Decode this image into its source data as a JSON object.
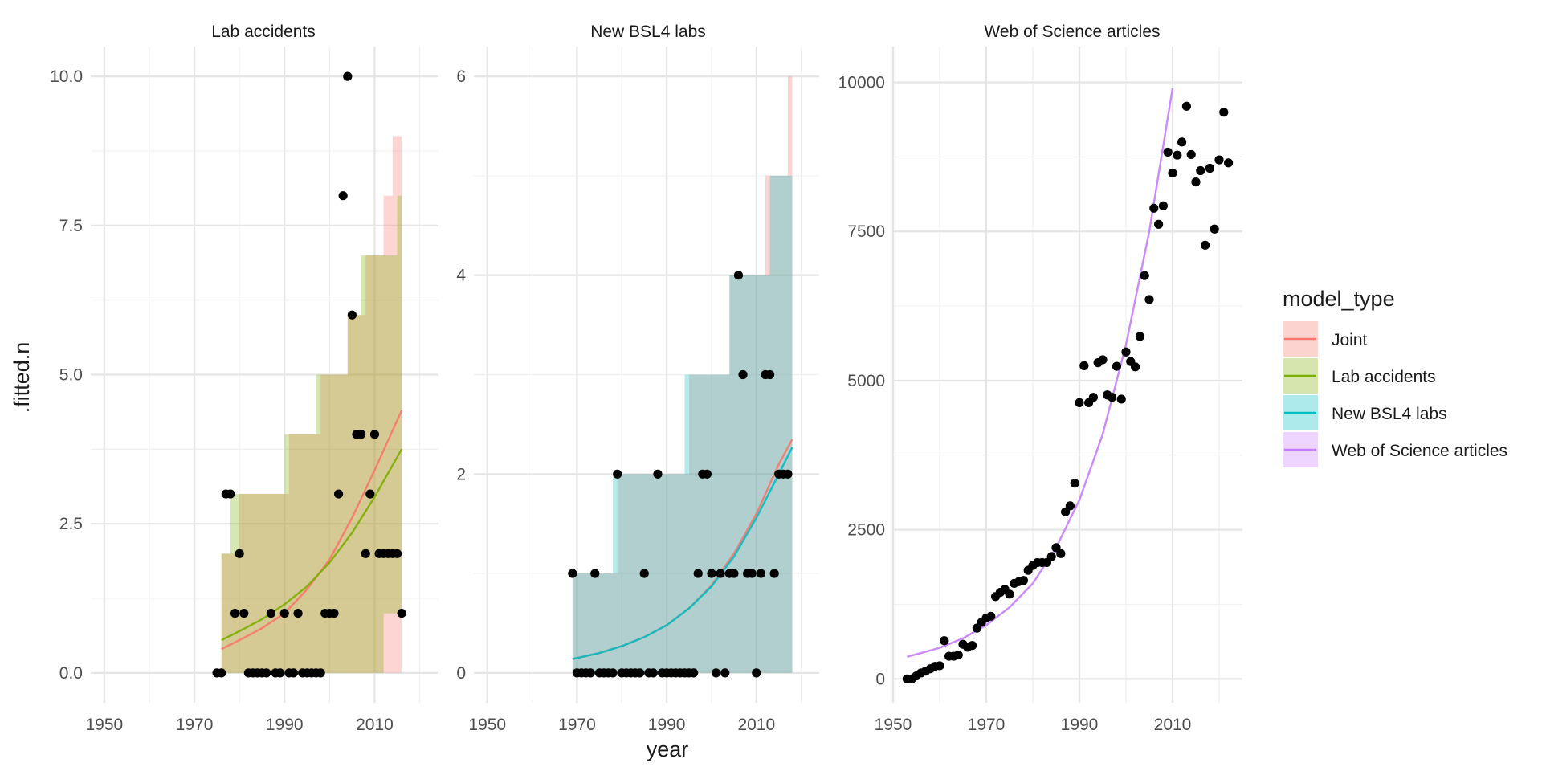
{
  "chart_data": {
    "type": "scatter",
    "xlabel": "year",
    "ylabel": ".fitted.n",
    "legend": {
      "title": "model_type",
      "position": "right",
      "entries": [
        {
          "name": "Joint",
          "color": "#F8766D"
        },
        {
          "name": "Lab accidents",
          "color": "#7CAE00"
        },
        {
          "name": "New BSL4 labs",
          "color": "#00BFC4"
        },
        {
          "name": "Web of Science articles",
          "color": "#C77CFF"
        }
      ]
    },
    "panels": [
      {
        "title": "Lab accidents",
        "xlim": [
          1947,
          2024
        ],
        "ylim": [
          -0.5,
          10.5
        ],
        "x_ticks": [
          1950,
          1970,
          1990,
          2010
        ],
        "y_ticks": [
          0,
          2.5,
          5,
          7.5,
          10
        ],
        "y_tick_labels": [
          "0.0",
          "2.5",
          "5.0",
          "7.5",
          "10.0"
        ],
        "points": [
          [
            1975,
            0
          ],
          [
            1976,
            0
          ],
          [
            1977,
            3
          ],
          [
            1978,
            3
          ],
          [
            1979,
            1
          ],
          [
            1980,
            2
          ],
          [
            1981,
            1
          ],
          [
            1982,
            0
          ],
          [
            1983,
            0
          ],
          [
            1984,
            0
          ],
          [
            1985,
            0
          ],
          [
            1986,
            0
          ],
          [
            1987,
            1
          ],
          [
            1988,
            0
          ],
          [
            1989,
            0
          ],
          [
            1990,
            1
          ],
          [
            1991,
            0
          ],
          [
            1992,
            0
          ],
          [
            1993,
            1
          ],
          [
            1994,
            0
          ],
          [
            1995,
            0
          ],
          [
            1996,
            0
          ],
          [
            1997,
            0
          ],
          [
            1998,
            0
          ],
          [
            1999,
            1
          ],
          [
            2000,
            1
          ],
          [
            2001,
            1
          ],
          [
            2002,
            3
          ],
          [
            2003,
            8
          ],
          [
            2004,
            10
          ],
          [
            2005,
            6
          ],
          [
            2006,
            4
          ],
          [
            2007,
            4
          ],
          [
            2008,
            2
          ],
          [
            2009,
            3
          ],
          [
            2010,
            4
          ],
          [
            2011,
            2
          ],
          [
            2012,
            2
          ],
          [
            2013,
            2
          ],
          [
            2014,
            2
          ],
          [
            2015,
            2
          ],
          [
            2016,
            1
          ]
        ],
        "series": [
          {
            "name": "Joint",
            "fit": {
              "x": [
                1976,
                1980,
                1985,
                1990,
                1995,
                2000,
                2005,
                2010,
                2016
              ],
              "y": [
                0.4,
                0.55,
                0.75,
                1.0,
                1.4,
                1.9,
                2.6,
                3.4,
                4.4
              ]
            },
            "band_x": [
              1976,
              1980,
              1989,
              1991,
              1998,
              2004,
              2008,
              2012,
              2014,
              2016
            ],
            "band_upper": [
              2,
              3,
              3,
              4,
              5,
              6,
              7,
              8,
              9,
              9
            ],
            "band_lower": [
              0,
              0,
              0,
              0,
              0,
              0,
              0,
              0,
              0,
              0
            ]
          },
          {
            "name": "Lab accidents",
            "fit": {
              "x": [
                1976,
                1980,
                1985,
                1990,
                1995,
                2000,
                2005,
                2010,
                2016
              ],
              "y": [
                0.55,
                0.7,
                0.9,
                1.15,
                1.45,
                1.85,
                2.35,
                2.95,
                3.75
              ]
            },
            "band_x": [
              1976,
              1978,
              1989,
              1990,
              1997,
              2004,
              2007,
              2012,
              2015,
              2016
            ],
            "band_upper": [
              2,
              3,
              3,
              4,
              5,
              6,
              7,
              7,
              8,
              8
            ],
            "band_lower": [
              0,
              0,
              0,
              0,
              0,
              0,
              0,
              0,
              1,
              1
            ]
          }
        ]
      },
      {
        "title": "New BSL4 labs",
        "xlim": [
          1947,
          2024
        ],
        "ylim": [
          -0.3,
          6.3
        ],
        "x_ticks": [
          1950,
          1970,
          1990,
          2010
        ],
        "y_ticks": [
          0,
          2,
          4,
          6
        ],
        "y_tick_labels": [
          "0",
          "2",
          "4",
          "6"
        ],
        "points": [
          [
            1969,
            1
          ],
          [
            1970,
            0
          ],
          [
            1971,
            0
          ],
          [
            1972,
            0
          ],
          [
            1973,
            0
          ],
          [
            1974,
            1
          ],
          [
            1975,
            0
          ],
          [
            1976,
            0
          ],
          [
            1977,
            0
          ],
          [
            1978,
            0
          ],
          [
            1979,
            2
          ],
          [
            1980,
            0
          ],
          [
            1981,
            0
          ],
          [
            1982,
            0
          ],
          [
            1983,
            0
          ],
          [
            1984,
            0
          ],
          [
            1985,
            1
          ],
          [
            1986,
            0
          ],
          [
            1987,
            0
          ],
          [
            1988,
            2
          ],
          [
            1989,
            0
          ],
          [
            1990,
            0
          ],
          [
            1991,
            0
          ],
          [
            1992,
            0
          ],
          [
            1993,
            0
          ],
          [
            1994,
            0
          ],
          [
            1995,
            0
          ],
          [
            1996,
            0
          ],
          [
            1997,
            1
          ],
          [
            1998,
            2
          ],
          [
            1999,
            2
          ],
          [
            2000,
            1
          ],
          [
            2001,
            0
          ],
          [
            2002,
            1
          ],
          [
            2003,
            0
          ],
          [
            2004,
            1
          ],
          [
            2005,
            1
          ],
          [
            2006,
            4
          ],
          [
            2007,
            3
          ],
          [
            2008,
            1
          ],
          [
            2009,
            1
          ],
          [
            2010,
            0
          ],
          [
            2011,
            1
          ],
          [
            2012,
            3
          ],
          [
            2013,
            3
          ],
          [
            2014,
            1
          ],
          [
            2015,
            2
          ],
          [
            2016,
            2
          ],
          [
            2017,
            2
          ]
        ],
        "series": [
          {
            "name": "Joint",
            "fit": {
              "x": [
                1969,
                1975,
                1980,
                1985,
                1990,
                1995,
                2000,
                2005,
                2010,
                2015,
                2018
              ],
              "y": [
                0.14,
                0.2,
                0.27,
                0.36,
                0.48,
                0.65,
                0.88,
                1.2,
                1.6,
                2.1,
                2.35
              ]
            },
            "band_x": [
              1969,
              1979,
              1995,
              2004,
              2012,
              2017,
              2018
            ],
            "band_upper": [
              1,
              2,
              3,
              4,
              5,
              6,
              6
            ],
            "band_lower": [
              0,
              0,
              0,
              0,
              0,
              0,
              0
            ]
          },
          {
            "name": "New BSL4 labs",
            "fit": {
              "x": [
                1969,
                1975,
                1980,
                1985,
                1990,
                1995,
                2000,
                2005,
                2010,
                2015,
                2018
              ],
              "y": [
                0.14,
                0.2,
                0.27,
                0.36,
                0.48,
                0.65,
                0.87,
                1.17,
                1.56,
                2.0,
                2.27
              ]
            },
            "band_x": [
              1969,
              1978,
              1994,
              2004,
              2013,
              2018
            ],
            "band_upper": [
              1,
              2,
              3,
              4,
              5,
              5
            ],
            "band_lower": [
              0,
              0,
              0,
              0,
              0,
              0
            ]
          }
        ]
      },
      {
        "title": "Web of Science articles",
        "xlim": [
          1950,
          2025
        ],
        "ylim": [
          -400,
          10600
        ],
        "x_ticks": [
          1950,
          1970,
          1990,
          2010
        ],
        "y_ticks": [
          0,
          2500,
          5000,
          7500,
          10000
        ],
        "y_tick_labels": [
          "0",
          "2500",
          "5000",
          "7500",
          "10000"
        ],
        "points": [
          [
            1953,
            0
          ],
          [
            1954,
            0
          ],
          [
            1955,
            50
          ],
          [
            1956,
            100
          ],
          [
            1957,
            130
          ],
          [
            1958,
            170
          ],
          [
            1959,
            210
          ],
          [
            1960,
            220
          ],
          [
            1961,
            640
          ],
          [
            1962,
            380
          ],
          [
            1963,
            380
          ],
          [
            1964,
            400
          ],
          [
            1965,
            580
          ],
          [
            1966,
            530
          ],
          [
            1967,
            560
          ],
          [
            1968,
            850
          ],
          [
            1969,
            950
          ],
          [
            1970,
            1020
          ],
          [
            1971,
            1050
          ],
          [
            1972,
            1380
          ],
          [
            1973,
            1450
          ],
          [
            1974,
            1500
          ],
          [
            1975,
            1420
          ],
          [
            1976,
            1600
          ],
          [
            1977,
            1630
          ],
          [
            1978,
            1650
          ],
          [
            1979,
            1820
          ],
          [
            1980,
            1900
          ],
          [
            1981,
            1950
          ],
          [
            1982,
            1950
          ],
          [
            1983,
            1950
          ],
          [
            1984,
            2050
          ],
          [
            1985,
            2200
          ],
          [
            1986,
            2100
          ],
          [
            1987,
            2800
          ],
          [
            1988,
            2900
          ],
          [
            1989,
            3280
          ],
          [
            1990,
            4630
          ],
          [
            1991,
            5250
          ],
          [
            1992,
            4630
          ],
          [
            1993,
            4720
          ],
          [
            1994,
            5300
          ],
          [
            1995,
            5350
          ],
          [
            1996,
            4760
          ],
          [
            1997,
            4720
          ],
          [
            1998,
            5240
          ],
          [
            1999,
            4690
          ],
          [
            2000,
            5480
          ],
          [
            2001,
            5320
          ],
          [
            2002,
            5230
          ],
          [
            2003,
            5740
          ],
          [
            2004,
            6760
          ],
          [
            2005,
            6360
          ],
          [
            2006,
            7890
          ],
          [
            2007,
            7620
          ],
          [
            2008,
            7930
          ],
          [
            2009,
            8830
          ],
          [
            2010,
            8480
          ],
          [
            2011,
            8780
          ],
          [
            2012,
            9000
          ],
          [
            2013,
            9600
          ],
          [
            2014,
            8790
          ],
          [
            2015,
            8330
          ],
          [
            2016,
            8520
          ],
          [
            2017,
            7270
          ],
          [
            2018,
            8560
          ],
          [
            2019,
            7540
          ],
          [
            2020,
            8700
          ],
          [
            2021,
            9500
          ],
          [
            2022,
            8650
          ]
        ],
        "series": [
          {
            "name": "Web of Science articles",
            "fit": {
              "x": [
                1953,
                1960,
                1965,
                1970,
                1975,
                1980,
                1985,
                1990,
                1995,
                2000,
                2005,
                2010
              ],
              "y": [
                370,
                520,
                680,
                900,
                1200,
                1600,
                2200,
                3000,
                4100,
                5600,
                7500,
                9900
              ]
            },
            "band_x": [],
            "band_upper": [],
            "band_lower": []
          }
        ]
      }
    ]
  }
}
